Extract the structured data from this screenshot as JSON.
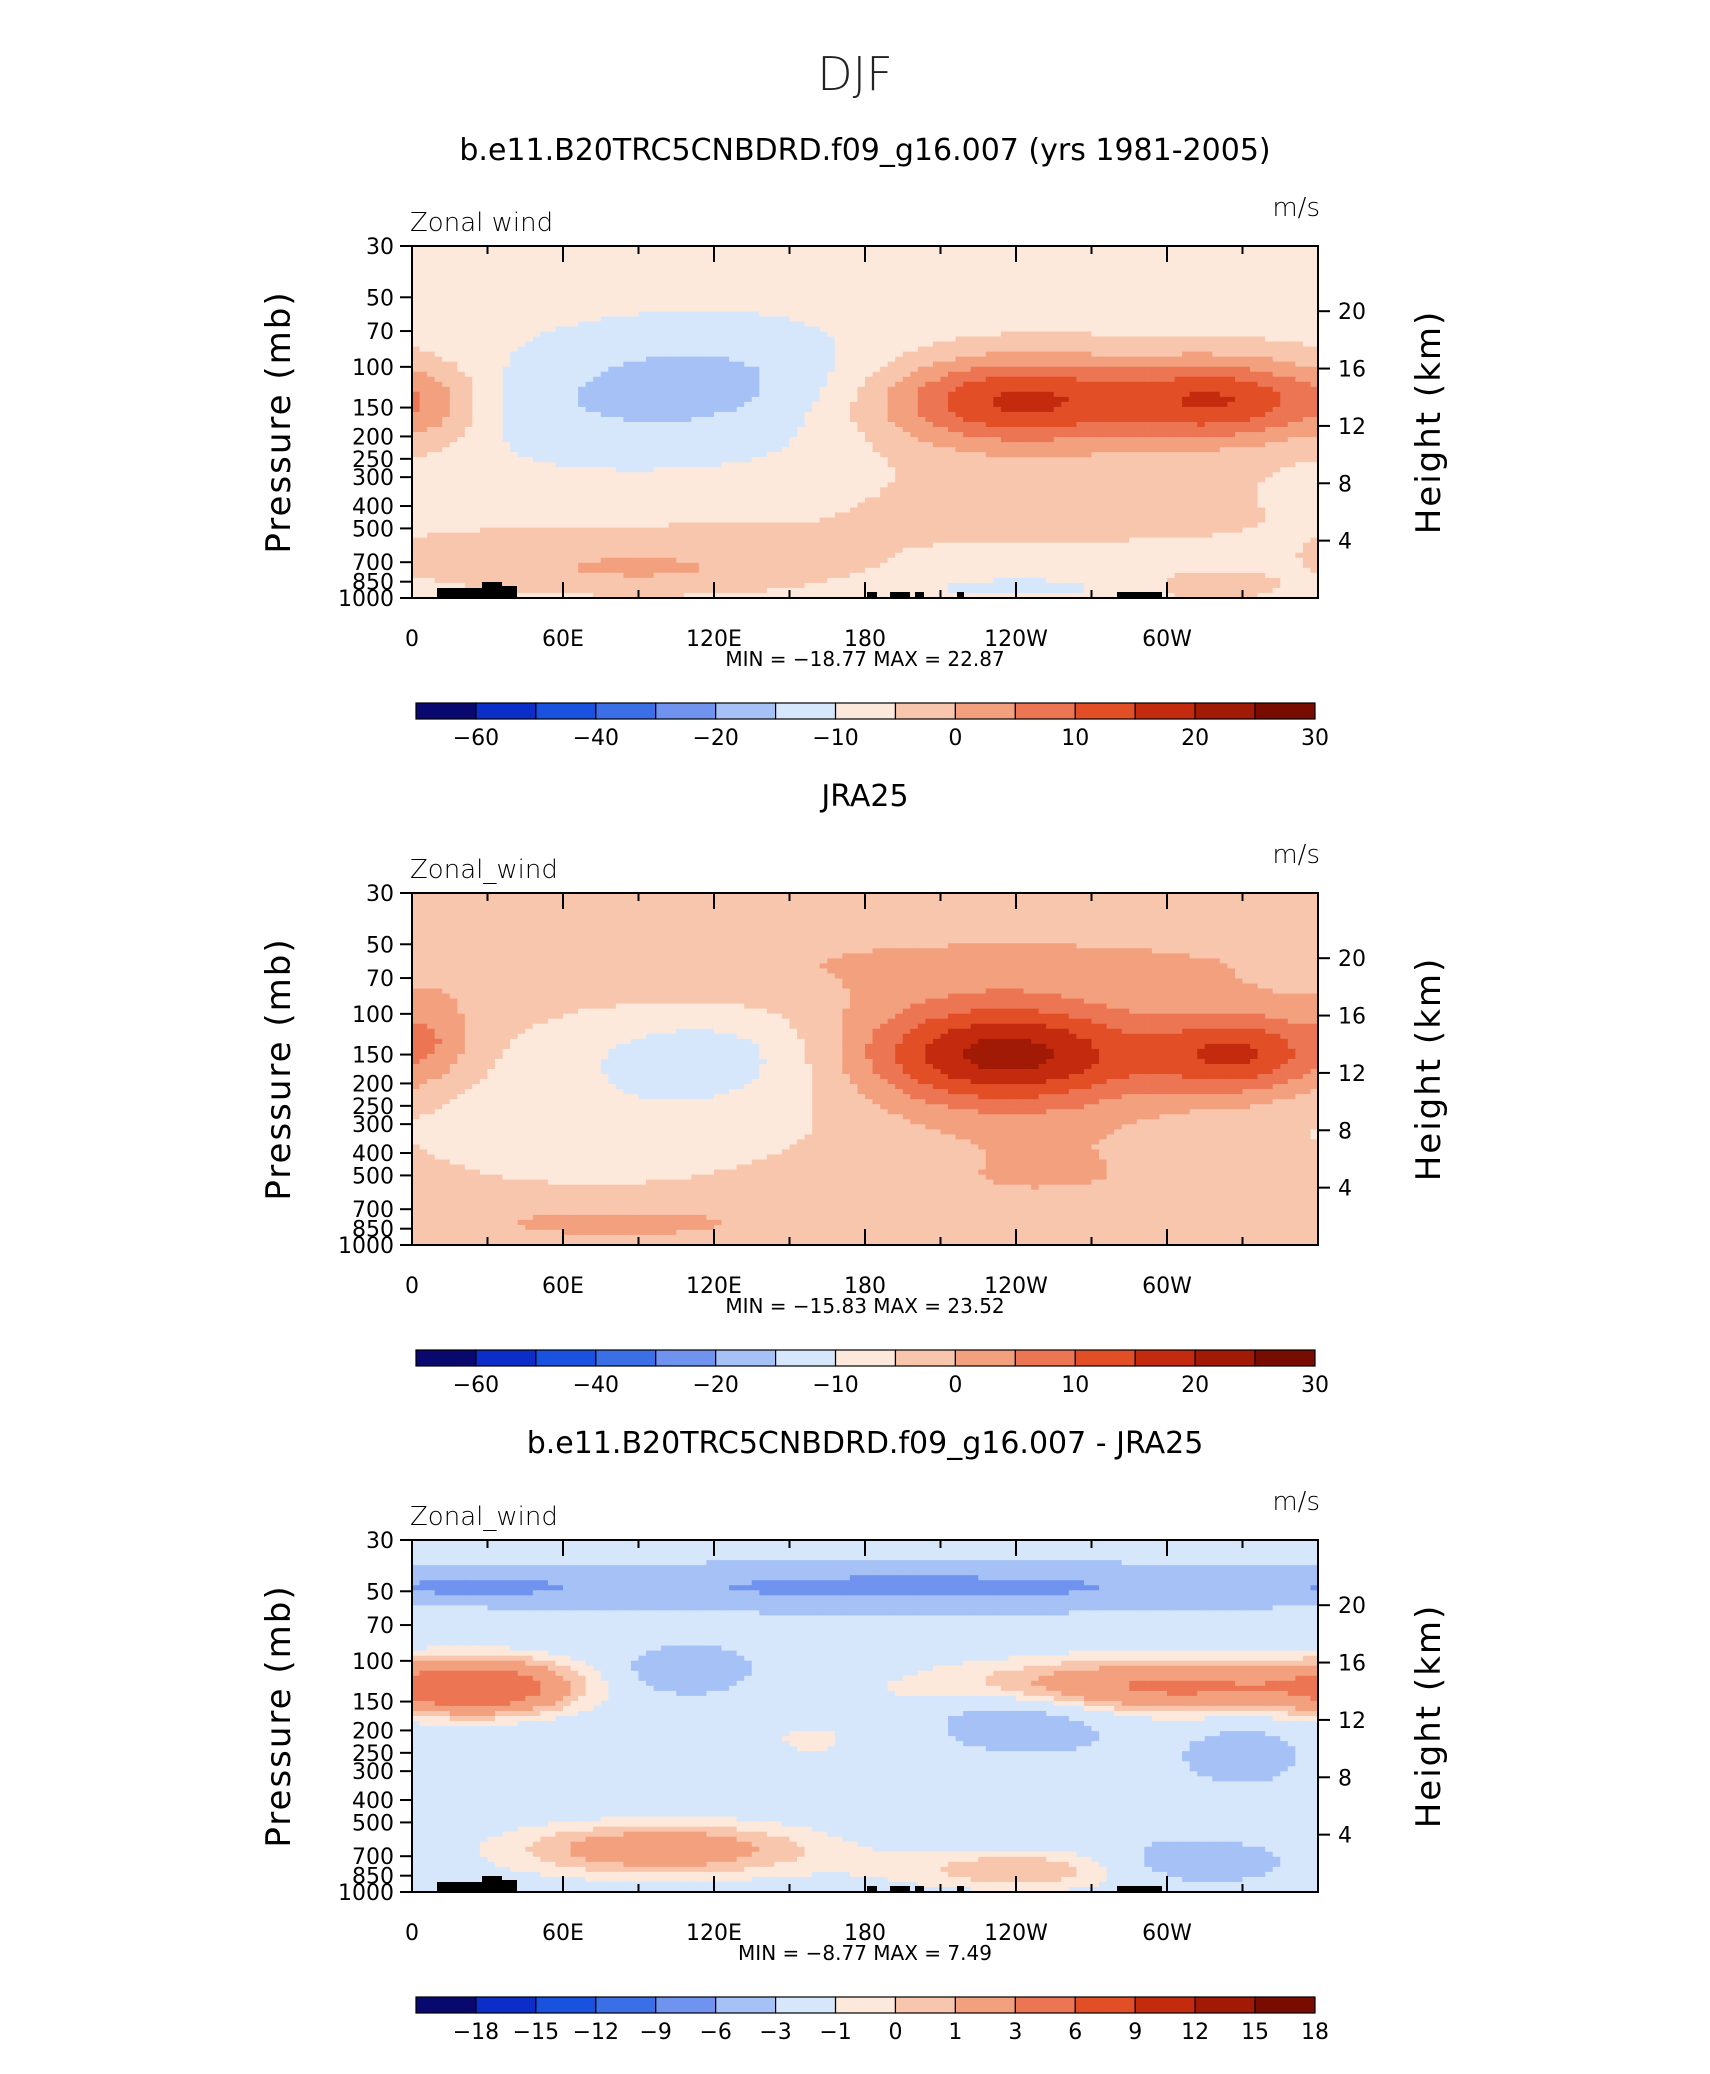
{
  "figure": {
    "title": "DJF"
  },
  "chart_data": [
    {
      "type": "heatmap",
      "title": "b.e11.B20TRC5CNBDRD.f09_g16.007 (yrs 1981-2005)",
      "left_label": "Zonal wind",
      "right_label": "m/s",
      "ylabel": "Pressure (mb)",
      "ylabel_right": "Height (km)",
      "x_ticks": [
        "0",
        "60E",
        "120E",
        "180",
        "120W",
        "60W"
      ],
      "y_ticks": [
        "30",
        "50",
        "70",
        "100",
        "150",
        "200",
        "250",
        "300",
        "400",
        "500",
        "700",
        "850",
        "1000"
      ],
      "height_ticks": [
        "20",
        "16",
        "12",
        "8",
        "4"
      ],
      "stats": "MIN =  −18.77   MAX =   22.87",
      "colorbar_labels": [
        "−60",
        "−40",
        "−20",
        "−10",
        "0",
        "10",
        "20",
        "30"
      ],
      "colorbar_colors": [
        "#08086e",
        "#0b2ec8",
        "#1a52e0",
        "#3a6fe6",
        "#6f93ef",
        "#a6c1f5",
        "#d6e7fb",
        "#fde9dc",
        "#f8c6ad",
        "#f3a07f",
        "#ec7553",
        "#e24f26",
        "#c42b0e",
        "#a01a05",
        "#780c01"
      ],
      "levels": [
        -70,
        -60,
        -50,
        -40,
        -30,
        -20,
        -10,
        -5,
        0,
        5,
        10,
        15,
        20,
        25,
        30,
        35
      ],
      "blobs": [
        {
          "lon": 112,
          "p": 120,
          "w": 58,
          "h": 0.42,
          "a": -10.5
        },
        {
          "lon": 90,
          "p": 250,
          "w": 70,
          "h": 0.25,
          "a": -2.5
        },
        {
          "lon": 40,
          "p": 170,
          "w": 40,
          "h": 0.25,
          "a": -2.0
        },
        {
          "lon": 238,
          "p": 140,
          "w": 40,
          "h": 0.32,
          "a": 23
        },
        {
          "lon": 325,
          "p": 140,
          "w": 30,
          "h": 0.3,
          "a": 20
        },
        {
          "lon": 255,
          "p": 350,
          "w": 70,
          "h": 0.4,
          "a": 3
        },
        {
          "lon": 10,
          "p": 150,
          "w": 15,
          "h": 0.3,
          "a": 6
        },
        {
          "lon": 90,
          "p": 750,
          "w": 45,
          "h": 0.15,
          "a": 6
        },
        {
          "lon": 85,
          "p": 600,
          "w": 70,
          "h": 0.25,
          "a": 2
        },
        {
          "lon": 240,
          "p": 900,
          "w": 30,
          "h": 0.08,
          "a": -6
        },
        {
          "lon": 315,
          "p": 900,
          "w": 20,
          "h": 0.1,
          "a": 3
        },
        {
          "lon": 180,
          "p": 40,
          "w": 250,
          "h": 0.4,
          "a": -2
        }
      ],
      "base": -1.5
    },
    {
      "type": "heatmap",
      "title": "JRA25",
      "left_label": "Zonal_wind",
      "right_label": "m/s",
      "ylabel": "Pressure (mb)",
      "ylabel_right": "Height (km)",
      "x_ticks": [
        "0",
        "60E",
        "120E",
        "180",
        "120W",
        "60W"
      ],
      "y_ticks": [
        "30",
        "50",
        "70",
        "100",
        "150",
        "200",
        "250",
        "300",
        "400",
        "500",
        "700",
        "850",
        "1000"
      ],
      "height_ticks": [
        "20",
        "16",
        "12",
        "8",
        "4"
      ],
      "stats": "MIN =  −15.83   MAX =   23.52",
      "colorbar_labels": [
        "−60",
        "−40",
        "−20",
        "−10",
        "0",
        "10",
        "20",
        "30"
      ],
      "colorbar_colors": [
        "#08086e",
        "#0b2ec8",
        "#1a52e0",
        "#3a6fe6",
        "#6f93ef",
        "#a6c1f5",
        "#d6e7fb",
        "#fde9dc",
        "#f8c6ad",
        "#f3a07f",
        "#ec7553",
        "#e24f26",
        "#c42b0e",
        "#a01a05",
        "#780c01"
      ],
      "levels": [
        -70,
        -60,
        -50,
        -40,
        -30,
        -20,
        -10,
        -5,
        0,
        5,
        10,
        15,
        20,
        25,
        30,
        35
      ],
      "blobs": [
        {
          "lon": 118,
          "p": 150,
          "w": 40,
          "h": 0.32,
          "a": -8.5
        },
        {
          "lon": 80,
          "p": 300,
          "w": 80,
          "h": 0.45,
          "a": -4.5
        },
        {
          "lon": 235,
          "p": 150,
          "w": 42,
          "h": 0.38,
          "a": 26
        },
        {
          "lon": 330,
          "p": 150,
          "w": 25,
          "h": 0.3,
          "a": 18
        },
        {
          "lon": 250,
          "p": 500,
          "w": 70,
          "h": 0.4,
          "a": 4
        },
        {
          "lon": 240,
          "p": 60,
          "w": 120,
          "h": 0.25,
          "a": 4
        },
        {
          "lon": 80,
          "p": 800,
          "w": 50,
          "h": 0.15,
          "a": 5
        },
        {
          "lon": 10,
          "p": 120,
          "w": 10,
          "h": 0.3,
          "a": 5
        },
        {
          "lon": 300,
          "p": 750,
          "w": 40,
          "h": 0.15,
          "a": -3
        }
      ],
      "base": 1.5
    },
    {
      "type": "heatmap",
      "title": "b.e11.B20TRC5CNBDRD.f09_g16.007 - JRA25",
      "left_label": "Zonal_wind",
      "right_label": "m/s",
      "ylabel": "Pressure (mb)",
      "ylabel_right": "Height (km)",
      "x_ticks": [
        "0",
        "60E",
        "120E",
        "180",
        "120W",
        "60W"
      ],
      "y_ticks": [
        "30",
        "50",
        "70",
        "100",
        "150",
        "200",
        "250",
        "300",
        "400",
        "500",
        "700",
        "850",
        "1000"
      ],
      "height_ticks": [
        "20",
        "16",
        "12",
        "8",
        "4"
      ],
      "stats": "MIN =    −8.77   MAX =      7.49",
      "colorbar_labels": [
        "−18",
        "−15",
        "−12",
        "−9",
        "−6",
        "−3",
        "−1",
        "0",
        "1",
        "3",
        "6",
        "9",
        "12",
        "15",
        "18"
      ],
      "colorbar_colors": [
        "#08086e",
        "#0b2ec8",
        "#1a52e0",
        "#3a6fe6",
        "#6f93ef",
        "#a6c1f5",
        "#d6e7fb",
        "#fde9dc",
        "#f8c6ad",
        "#f3a07f",
        "#ec7553",
        "#e24f26",
        "#c42b0e",
        "#a01a05",
        "#780c01"
      ],
      "levels": [
        -21,
        -18,
        -15,
        -12,
        -9,
        -6,
        -3,
        -1,
        0,
        1,
        3,
        6,
        9,
        12,
        15,
        18,
        21
      ],
      "blobs": [
        {
          "lon": 200,
          "p": 48,
          "w": 110,
          "h": 0.15,
          "a": -5
        },
        {
          "lon": 25,
          "p": 48,
          "w": 30,
          "h": 0.1,
          "a": -3.5
        },
        {
          "lon": 30,
          "p": 130,
          "w": 25,
          "h": 0.2,
          "a": 6
        },
        {
          "lon": 300,
          "p": 130,
          "w": 60,
          "h": 0.2,
          "a": 5.5
        },
        {
          "lon": 100,
          "p": 650,
          "w": 45,
          "h": 0.2,
          "a": 4.5
        },
        {
          "lon": 240,
          "p": 180,
          "w": 25,
          "h": 0.2,
          "a": -3
        },
        {
          "lon": 110,
          "p": 110,
          "w": 15,
          "h": 0.15,
          "a": -4
        },
        {
          "lon": 160,
          "p": 230,
          "w": 40,
          "h": 0.35,
          "a": 1.5
        },
        {
          "lon": 310,
          "p": 750,
          "w": 25,
          "h": 0.15,
          "a": -3
        },
        {
          "lon": 245,
          "p": 800,
          "w": 40,
          "h": 0.15,
          "a": 3
        },
        {
          "lon": 330,
          "p": 250,
          "w": 15,
          "h": 0.2,
          "a": -2
        },
        {
          "lon": 180,
          "p": 300,
          "w": 180,
          "h": 0.6,
          "a": -0.5
        }
      ],
      "base": -2.0
    }
  ]
}
